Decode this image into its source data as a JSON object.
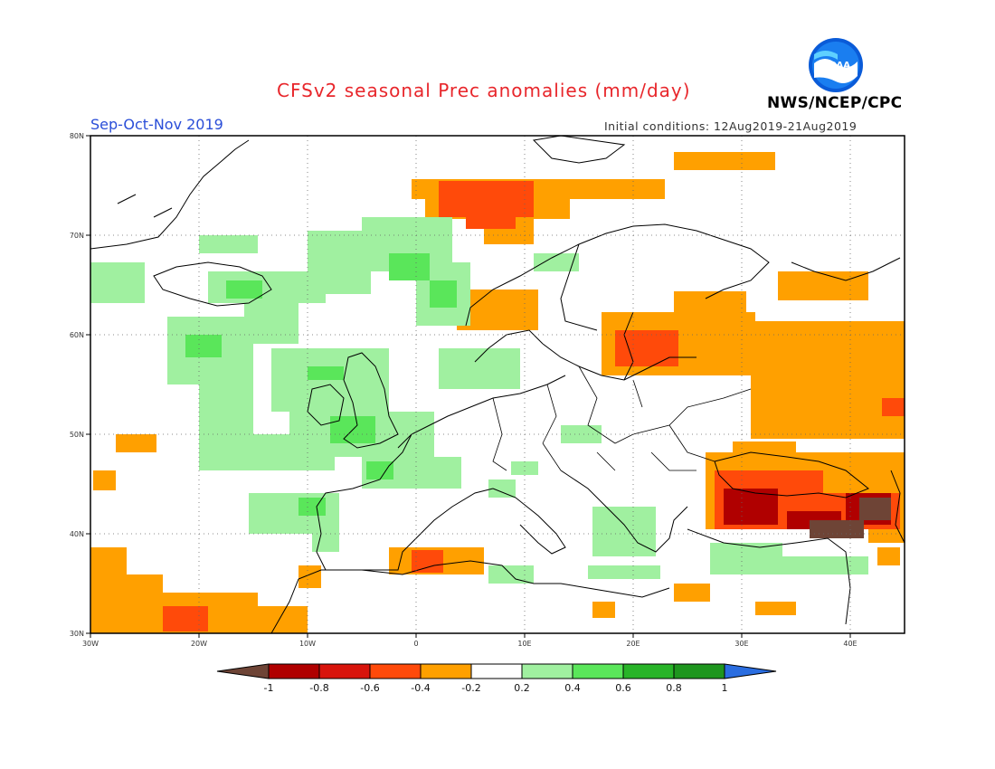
{
  "header": {
    "title": "CFSv2 seasonal Prec anomalies (mm/day)",
    "season": "Sep-Oct-Nov 2019",
    "initial_conditions": "Initial conditions: 12Aug2019-21Aug2019",
    "organization": "NWS/NCEP/CPC",
    "logo_text": "NOAA"
  },
  "map": {
    "lat_labels": [
      "80N",
      "70N",
      "60N",
      "50N",
      "40N",
      "30N"
    ],
    "lon_labels": [
      "30W",
      "20W",
      "10W",
      "0",
      "10E",
      "20E",
      "30E",
      "40E"
    ],
    "lat_range": [
      30,
      80
    ],
    "lon_range": [
      -30,
      45
    ],
    "grid": true
  },
  "colorbar": {
    "labels": [
      "-1",
      "-0.8",
      "-0.6",
      "-0.4",
      "-0.2",
      "0.2",
      "0.4",
      "0.6",
      "0.8",
      "1"
    ],
    "colors": {
      "lt_m1": "#6e4436",
      "m1_m08": "#b00000",
      "m08_m06": "#d8140c",
      "m06_m04": "#ff4a0a",
      "m04_m02": "#ffa000",
      "m02_02": "#ffffff",
      "p02_04": "#a0f0a0",
      "p04_06": "#5ae65a",
      "p06_08": "#28b428",
      "p08_1": "#1e961e",
      "gt_1": "#2a6de0"
    }
  }
}
